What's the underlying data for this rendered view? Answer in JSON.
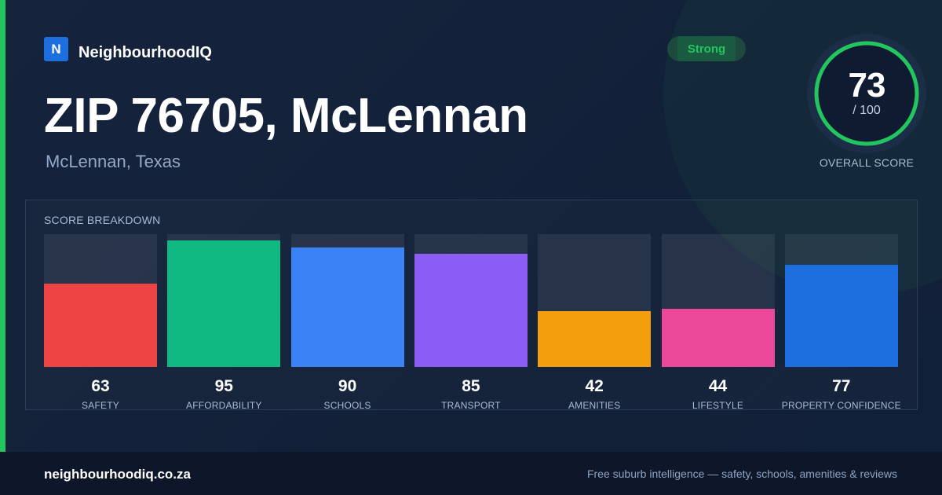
{
  "brand": {
    "logo_letter": "N",
    "name": "NeighbourhoodIQ"
  },
  "header": {
    "title": "ZIP 76705, McLennan",
    "subtitle": "McLennan, Texas",
    "badge": "Strong"
  },
  "overall": {
    "score": "73",
    "max": "/ 100",
    "fraction": 0.73,
    "label": "OVERALL SCORE"
  },
  "chart_data": {
    "type": "bar",
    "title": "SCORE BREAKDOWN",
    "ylim": [
      0,
      100
    ],
    "grid": false,
    "categories": [
      "SAFETY",
      "AFFORDABILITY",
      "SCHOOLS",
      "TRANSPORT",
      "AMENITIES",
      "LIFESTYLE",
      "PROPERTY CONFIDENCE"
    ],
    "values": [
      63,
      95,
      90,
      85,
      42,
      44,
      77
    ],
    "colors": [
      "#ef4444",
      "#10b981",
      "#3b82f6",
      "#8b5cf6",
      "#f59e0b",
      "#ec4899",
      "#1d6fe0"
    ]
  },
  "colors": {
    "accent": "#22c55e",
    "brand": "#1d6fe0",
    "background": "#13213a"
  },
  "footer": {
    "site": "neighbourhoodiq.co.za",
    "tagline": "Free suburb intelligence — safety, schools, amenities & reviews"
  }
}
